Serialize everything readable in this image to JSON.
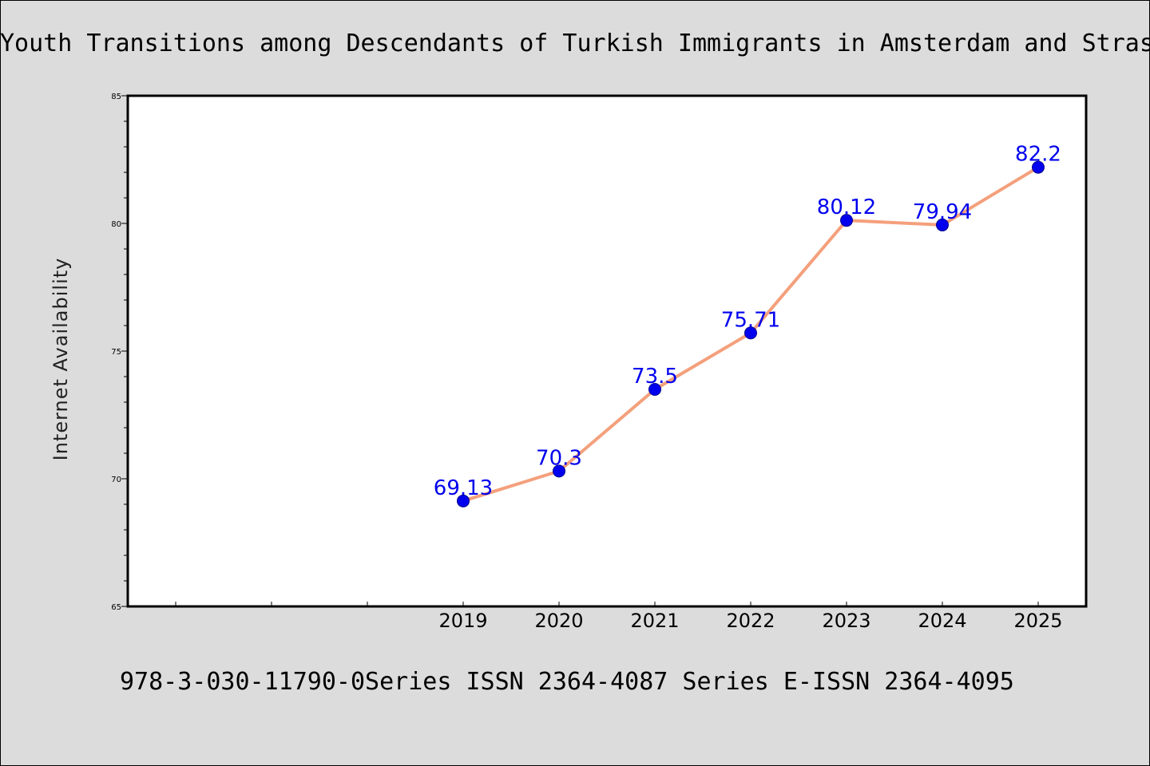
{
  "title": "Youth Transitions among Descendants of Turkish Immigrants in Amsterdam and Strasbourg",
  "footer": "978-3-030-11790-0Series ISSN 2364-4087 Series E-ISSN 2364-4095",
  "chart_data": {
    "type": "line",
    "title": "Youth Transitions among Descendants of Turkish Immigrants in Amsterdam and Strasbourg",
    "xlabel": "",
    "ylabel": "Internet Availability",
    "x": [
      "2019",
      "2020",
      "2021",
      "2022",
      "2023",
      "2024",
      "2025"
    ],
    "series": [
      {
        "values": [
          69.13,
          70.3,
          73.5,
          75.71,
          80.12,
          79.94,
          82.2
        ],
        "labels": [
          "69.13",
          "70.3",
          "73.5",
          "75.71",
          "80.12",
          "79.94",
          "82.2"
        ]
      }
    ],
    "ylim": [
      65,
      85
    ],
    "yticks": [
      "65",
      "70",
      "75",
      "80",
      "85"
    ],
    "x_slots": 10,
    "first_data_slot": 3,
    "grid": false,
    "legend": "none",
    "colors": {
      "line": "#f4a07c",
      "marker": "#0000ee",
      "data_label": "#0000ee",
      "background": "#dcdcdc",
      "plot_background": "#ffffff"
    }
  }
}
